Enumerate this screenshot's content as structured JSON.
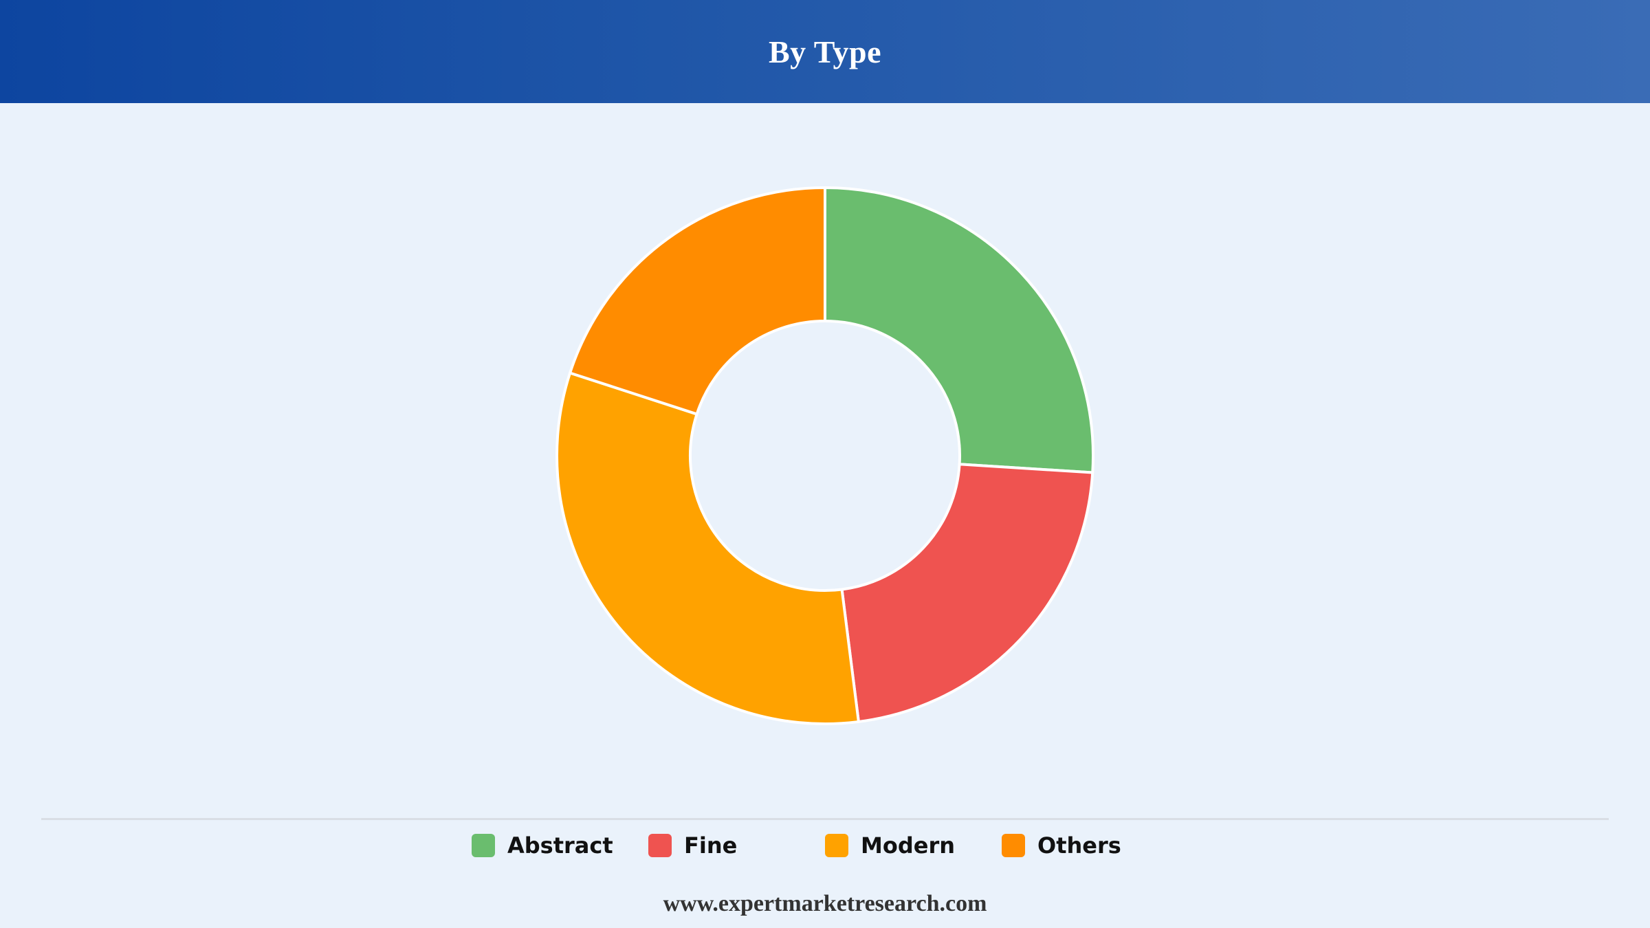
{
  "header": {
    "title": "By Type"
  },
  "chart_data": {
    "type": "pie",
    "variant": "donut",
    "title": "By Type",
    "categories": [
      "Abstract",
      "Fine",
      "Modern",
      "Others"
    ],
    "values": [
      26,
      22,
      32,
      20
    ],
    "unit": "%",
    "colors": [
      "#6abd6e",
      "#ef5350",
      "#ffa200",
      "#ff8c00"
    ],
    "slice_border_color": "#ffffff",
    "start_angle_deg": 0,
    "direction": "clockwise",
    "legend_position": "bottom"
  },
  "legend": {
    "items": [
      {
        "label": "Abstract",
        "color": "#6abd6e"
      },
      {
        "label": "Fine",
        "color": "#ef5350"
      },
      {
        "label": "Modern",
        "color": "#ffa200"
      },
      {
        "label": "Others",
        "color": "#ff8c00"
      }
    ]
  },
  "footer": {
    "source": "www.expertmarketresearch.com"
  }
}
